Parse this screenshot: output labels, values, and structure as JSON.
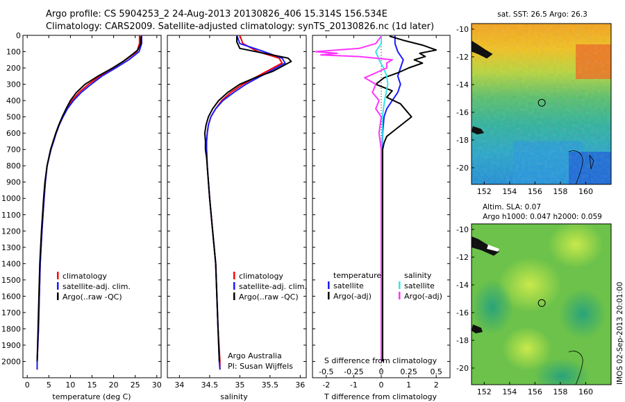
{
  "header": {
    "line1": "Argo profile: CS 5904253_2 24-Aug-2013 20130826_406 15.314S 156.534E",
    "line2": "Climatology: CARS2009. Satellite-adjusted climatology: synTS_20130826.nc (1d later)"
  },
  "colors": {
    "red": "#ff0000",
    "blue": "#1a1aff",
    "black": "#000000",
    "cyan": "#33e6e6",
    "magenta": "#ff33ff"
  },
  "chart_data": [
    {
      "type": "line",
      "xlabel": "temperature (deg C)",
      "ylabel": "",
      "xlim": [
        -1,
        31
      ],
      "ylim": [
        0,
        2100
      ],
      "x_ticks": [
        "0",
        "5",
        "10",
        "15",
        "20",
        "25",
        "30"
      ],
      "y_ticks": [
        "0",
        "100",
        "200",
        "300",
        "400",
        "500",
        "600",
        "700",
        "800",
        "900",
        "1000",
        "1100",
        "1200",
        "1300",
        "1400",
        "1500",
        "1600",
        "1700",
        "1800",
        "1900",
        "2000"
      ],
      "legend": [
        "climatology",
        "satellite-adj. clim.",
        "Argo(..raw -QC)"
      ],
      "series": [
        {
          "name": "climatology",
          "color": "red",
          "depth": [
            0,
            50,
            100,
            150,
            200,
            250,
            300,
            350,
            400,
            450,
            500,
            550,
            600,
            650,
            700,
            800,
            900,
            1000,
            1200,
            1400,
            1600,
            1800,
            2000,
            2050
          ],
          "values": [
            26.0,
            26.0,
            25.4,
            22.8,
            19.9,
            16.8,
            14.2,
            12.0,
            10.4,
            9.2,
            8.2,
            7.4,
            6.7,
            6.1,
            5.5,
            4.6,
            4.2,
            3.9,
            3.4,
            3.0,
            2.8,
            2.6,
            2.3,
            2.3
          ]
        },
        {
          "name": "satellite-adj. clim.",
          "color": "blue",
          "depth": [
            0,
            50,
            100,
            150,
            200,
            250,
            300,
            350,
            400,
            450,
            500,
            550,
            600,
            650,
            700,
            800,
            900,
            1000,
            1200,
            1400,
            1600,
            1800,
            2000,
            2050
          ],
          "values": [
            26.5,
            26.5,
            25.9,
            23.5,
            20.5,
            17.3,
            14.8,
            12.5,
            10.7,
            9.3,
            8.3,
            7.4,
            6.7,
            6.1,
            5.5,
            4.6,
            4.2,
            3.9,
            3.4,
            3.0,
            2.8,
            2.6,
            2.3,
            2.3
          ]
        },
        {
          "name": "Argo(..raw -QC)",
          "color": "black",
          "depth": [
            5,
            50,
            90,
            120,
            160,
            200,
            250,
            300,
            350,
            400,
            450,
            500,
            550,
            600,
            650,
            700,
            800,
            900,
            1000,
            1200,
            1400,
            1600,
            1800,
            2000
          ],
          "values": [
            26.3,
            26.3,
            25.6,
            24.2,
            22.2,
            19.8,
            16.4,
            13.4,
            11.4,
            10.0,
            9.0,
            8.1,
            7.3,
            6.6,
            6.0,
            5.4,
            4.6,
            4.1,
            3.8,
            3.3,
            2.9,
            2.7,
            2.5,
            2.3
          ]
        }
      ]
    },
    {
      "type": "line",
      "xlabel": "salinity",
      "xlim": [
        33.8,
        36.1
      ],
      "ylim": [
        0,
        2100
      ],
      "x_ticks": [
        "34",
        "34.5",
        "35",
        "35.5",
        "36"
      ],
      "legend": [
        "climatology",
        "satellite-adj. clim.",
        "Argo(..raw -QC)"
      ],
      "annotation": [
        "Argo Australia",
        "PI: Susan Wijffels"
      ],
      "series": [
        {
          "name": "climatology",
          "color": "red",
          "depth": [
            0,
            50,
            100,
            140,
            170,
            200,
            250,
            300,
            350,
            400,
            450,
            500,
            550,
            600,
            650,
            700,
            800,
            1000,
            1200,
            1400,
            1600,
            1800,
            2000,
            2050
          ],
          "values": [
            35.0,
            35.05,
            35.3,
            35.65,
            35.7,
            35.55,
            35.3,
            35.05,
            34.85,
            34.7,
            34.6,
            34.52,
            34.48,
            34.46,
            34.45,
            34.45,
            34.46,
            34.5,
            34.55,
            34.6,
            34.62,
            34.64,
            34.67,
            34.67
          ]
        },
        {
          "name": "satellite-adj. clim.",
          "color": "blue",
          "depth": [
            0,
            50,
            100,
            140,
            170,
            200,
            250,
            300,
            350,
            400,
            450,
            500,
            550,
            600,
            650,
            700,
            800,
            1000,
            1200,
            1400,
            1600,
            1800,
            2000,
            2050
          ],
          "values": [
            34.95,
            35.0,
            35.4,
            35.7,
            35.75,
            35.6,
            35.35,
            35.1,
            34.9,
            34.72,
            34.6,
            34.52,
            34.48,
            34.46,
            34.45,
            34.45,
            34.46,
            34.5,
            34.55,
            34.6,
            34.62,
            34.64,
            34.66,
            34.67
          ]
        },
        {
          "name": "Argo(..raw -QC)",
          "color": "black",
          "depth": [
            5,
            40,
            80,
            110,
            140,
            160,
            190,
            220,
            260,
            300,
            350,
            400,
            450,
            500,
            550,
            600,
            650,
            700,
            750,
            800,
            1000,
            1200,
            1400,
            1600,
            1800,
            2000
          ],
          "values": [
            34.95,
            34.95,
            35.0,
            35.4,
            35.8,
            35.85,
            35.7,
            35.55,
            35.25,
            35.0,
            34.8,
            34.65,
            34.55,
            34.48,
            34.44,
            34.42,
            34.43,
            34.43,
            34.45,
            34.46,
            34.5,
            34.55,
            34.6,
            34.62,
            34.64,
            34.66
          ]
        }
      ]
    },
    {
      "type": "line",
      "xlabel": "T difference from climatology",
      "xlabel_top": "S difference from climatology",
      "xlim": [
        -2.5,
        2.5
      ],
      "ylim": [
        0,
        2100
      ],
      "x_ticks": [
        "-2",
        "-1",
        "0",
        "1",
        "2"
      ],
      "x_ticks_top": [
        "-0.5",
        "-0.25",
        "0",
        "0.25",
        "0.5"
      ],
      "legend_headers": [
        "temperature",
        "salinity"
      ],
      "legend": [
        "satellite",
        "Argo(-adj)",
        "satellite",
        "Argo(-adj)"
      ],
      "series": [
        {
          "name": "temperature satellite",
          "color": "blue",
          "depth": [
            0,
            50,
            100,
            150,
            200,
            250,
            300,
            350,
            400,
            450,
            500,
            600,
            700,
            800,
            1000,
            1500,
            2000
          ],
          "values": [
            0.5,
            0.5,
            0.6,
            0.8,
            0.7,
            0.6,
            0.7,
            0.6,
            0.4,
            0.2,
            0.1,
            0.05,
            0.02,
            0.0,
            0.0,
            0.0,
            0.0
          ]
        },
        {
          "name": "temperature Argo(-adj)",
          "color": "black",
          "depth": [
            5,
            30,
            60,
            90,
            110,
            130,
            150,
            170,
            200,
            230,
            260,
            300,
            340,
            380,
            420,
            460,
            500,
            540,
            580,
            620,
            660,
            700,
            800,
            1000,
            1200,
            1500,
            1800,
            2000
          ],
          "values": [
            0.3,
            0.8,
            1.5,
            2.0,
            1.4,
            1.6,
            1.2,
            1.5,
            1.0,
            0.6,
            0.1,
            -0.2,
            0.4,
            0.2,
            0.7,
            0.9,
            1.1,
            0.8,
            0.5,
            0.2,
            0.1,
            0.05,
            0.05,
            0.05,
            0.05,
            0.05,
            0.05,
            0.05
          ]
        },
        {
          "name": "salinity satellite",
          "color": "cyan",
          "depth": [
            0,
            50,
            100,
            150,
            200,
            250,
            300,
            400,
            500,
            600,
            700,
            800,
            1000,
            1500,
            2000
          ],
          "values": [
            0.0,
            0.0,
            -0.05,
            -0.02,
            0.02,
            0.05,
            0.06,
            0.03,
            0.01,
            0.01,
            0.0,
            0.0,
            0.0,
            0.0,
            0.0
          ]
        },
        {
          "name": "salinity Argo(-adj)",
          "color": "magenta",
          "depth": [
            5,
            50,
            80,
            100,
            110,
            120,
            130,
            150,
            170,
            200,
            230,
            260,
            300,
            350,
            400,
            450,
            500,
            600,
            700,
            800,
            1000,
            1500,
            2000
          ],
          "values": [
            0.0,
            -0.05,
            -0.2,
            -0.6,
            -0.4,
            -0.55,
            -0.2,
            0.1,
            0.05,
            0.05,
            -0.05,
            -0.15,
            -0.05,
            -0.08,
            -0.02,
            -0.05,
            0.0,
            -0.02,
            0.0,
            0.0,
            0.0,
            0.0,
            0.0
          ]
        }
      ]
    },
    {
      "type": "heatmap",
      "title": "sat. SST: 26.5 Argo: 26.3",
      "x_ticks": [
        "152",
        "154",
        "156",
        "158",
        "160"
      ],
      "y_ticks": [
        "-10",
        "-12",
        "-14",
        "-16",
        "-18",
        "-20"
      ],
      "xlim": [
        151,
        162
      ],
      "ylim": [
        -21.2,
        -9.6
      ],
      "marker": {
        "lon": 156.534,
        "lat": -15.314
      }
    },
    {
      "type": "heatmap",
      "title_lines": [
        "Altim. SLA: 0.07",
        "Argo h1000: 0.047 h2000: 0.059"
      ],
      "x_ticks": [
        "152",
        "154",
        "156",
        "158",
        "160"
      ],
      "y_ticks": [
        "-10",
        "-12",
        "-14",
        "-16",
        "-18",
        "-20"
      ],
      "xlim": [
        151,
        162
      ],
      "ylim": [
        -21.2,
        -9.6
      ],
      "marker": {
        "lon": 156.534,
        "lat": -15.314
      }
    }
  ],
  "footer": {
    "stamp": "IMOS 02-Sep-2013 20:01:00"
  }
}
